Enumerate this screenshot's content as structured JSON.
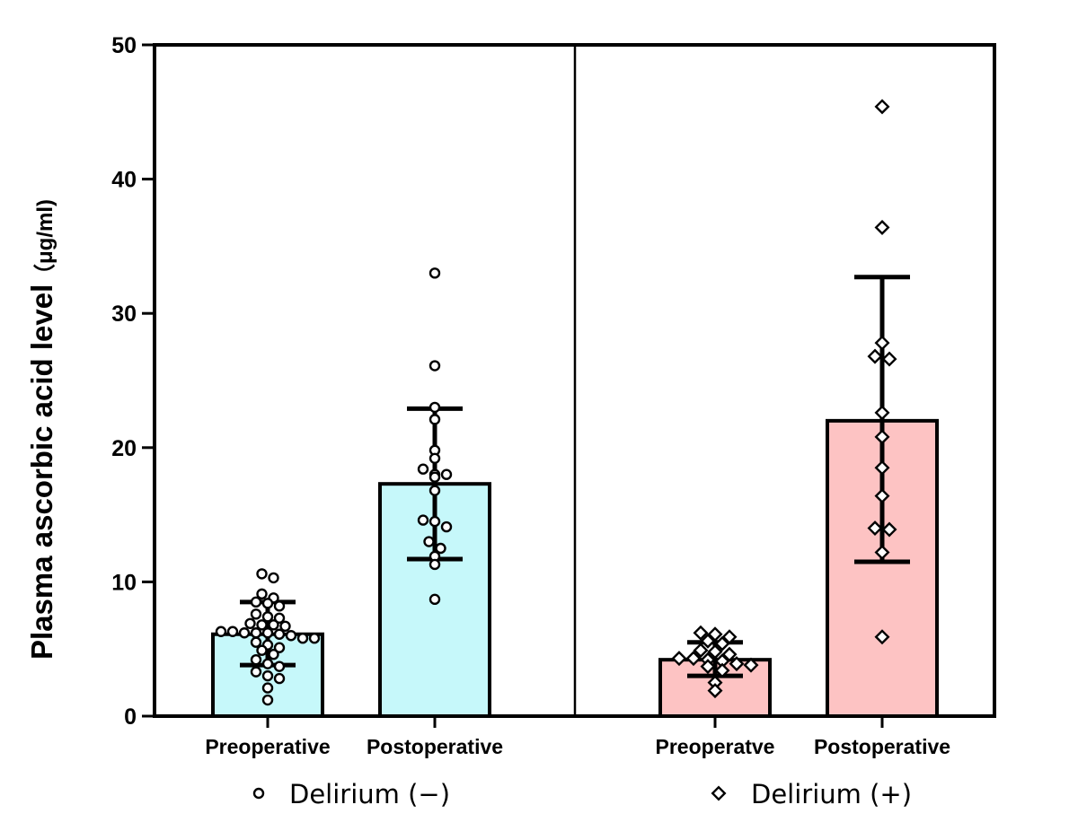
{
  "chart_data": {
    "type": "bar",
    "ylabel": "Plasma ascorbic acid level",
    "yunit": "（μg/ml)",
    "ylim": [
      0,
      50
    ],
    "yticks": [
      0,
      10,
      20,
      30,
      40,
      50
    ],
    "grid": false,
    "groups": [
      {
        "legend": "Delirium (−)",
        "marker": "circle",
        "color": "#c6f8fa",
        "bars": [
          {
            "category": "Preoperative",
            "mean": 6.1,
            "err_low": 3.8,
            "err_high": 8.5,
            "points": [
              10.6,
              10.3,
              9.1,
              8.8,
              8.5,
              8.4,
              8.2,
              7.6,
              7.4,
              7.3,
              6.9,
              6.8,
              6.8,
              6.7,
              6.3,
              6.3,
              6.2,
              6.2,
              6.2,
              6.1,
              6.0,
              5.8,
              5.8,
              5.5,
              5.3,
              5.1,
              4.9,
              4.6,
              4.2,
              3.9,
              3.7,
              3.3,
              3.0,
              2.8,
              2.1,
              1.2
            ]
          },
          {
            "category": "Postoperative",
            "mean": 17.3,
            "err_low": 11.7,
            "err_high": 22.9,
            "points": [
              33.0,
              26.1,
              23.0,
              22.1,
              19.8,
              19.2,
              18.4,
              18.0,
              18.0,
              17.8,
              16.8,
              14.6,
              14.5,
              14.1,
              13.0,
              12.5,
              11.9,
              11.3,
              8.7
            ]
          }
        ]
      },
      {
        "legend": "Delirium (+)",
        "marker": "diamond",
        "color": "#fdc3c3",
        "bars": [
          {
            "category": "Preoperatve",
            "mean": 4.2,
            "err_low": 3.0,
            "err_high": 5.5,
            "points": [
              6.2,
              6.1,
              5.9,
              5.6,
              5.4,
              4.9,
              4.8,
              4.6,
              4.3,
              4.3,
              4.2,
              4.1,
              3.9,
              3.8,
              3.7,
              3.4,
              2.5,
              1.9
            ]
          },
          {
            "category": "Postoperative",
            "mean": 22.0,
            "err_low": 11.5,
            "err_high": 32.7,
            "points": [
              45.4,
              36.4,
              27.8,
              26.8,
              26.6,
              22.6,
              20.8,
              18.5,
              16.4,
              14.0,
              13.9,
              12.2,
              5.9
            ]
          }
        ]
      }
    ]
  }
}
